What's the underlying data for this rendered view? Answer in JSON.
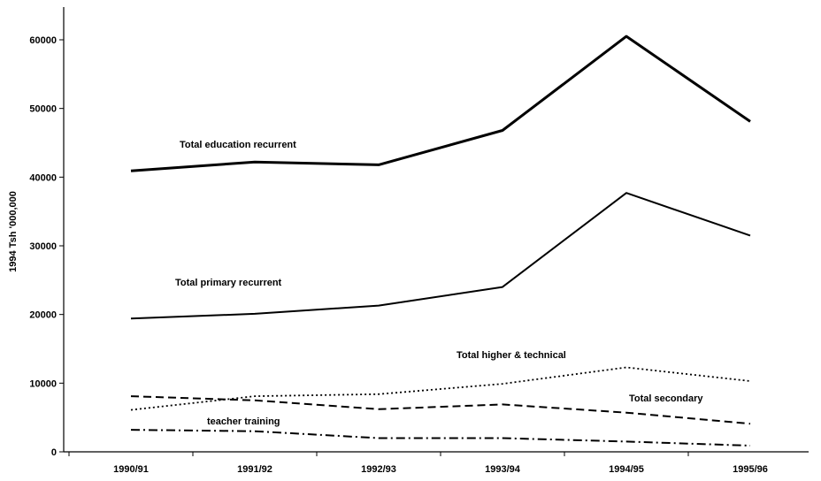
{
  "chart_data": {
    "type": "line",
    "title": "",
    "xlabel": "",
    "ylabel": "1994 Tsh '000,000",
    "categories": [
      "1990/91",
      "1991/92",
      "1992/93",
      "1993/94",
      "1994/95",
      "1995/96"
    ],
    "ylim": [
      0,
      65000
    ],
    "yticks": [
      0,
      10000,
      20000,
      30000,
      40000,
      50000,
      60000
    ],
    "grid": false,
    "legend": "inline labels",
    "series": [
      {
        "name": "Total education recurrent",
        "values": [
          40900,
          42200,
          41800,
          46800,
          60500,
          48100
        ],
        "style": "solid-thick"
      },
      {
        "name": "Total primary recurrent",
        "values": [
          19400,
          20100,
          21300,
          24000,
          37700,
          31500
        ],
        "style": "solid"
      },
      {
        "name": "Total higher & technical",
        "values": [
          6100,
          8100,
          8400,
          9900,
          12300,
          10300
        ],
        "style": "dotted"
      },
      {
        "name": "Total secondary",
        "values": [
          8100,
          7500,
          6200,
          6900,
          5700,
          4100
        ],
        "style": "dashed"
      },
      {
        "name": "teacher training",
        "values": [
          3200,
          3000,
          2000,
          2000,
          1500,
          900
        ],
        "style": "dashdot"
      }
    ]
  }
}
